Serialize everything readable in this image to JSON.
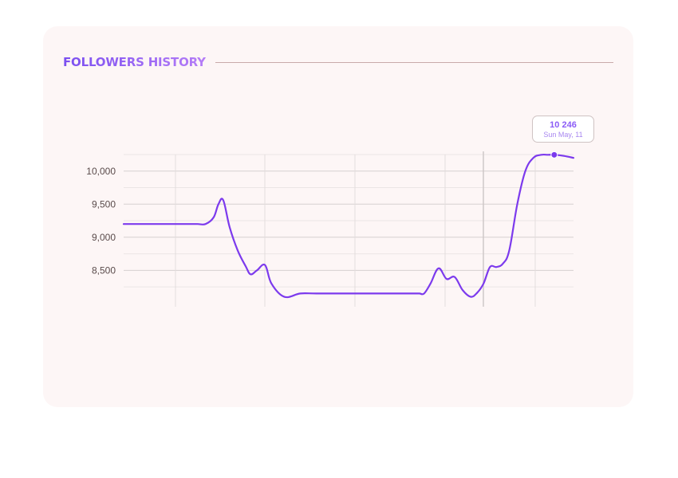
{
  "card": {
    "title": "FOLLOWERS HISTORY"
  },
  "colors": {
    "accent": "#7c3aed",
    "title_gradient_start": "#7b4ff0",
    "title_gradient_end": "#b57df7",
    "card_background": "#fdf6f6"
  },
  "tooltip": {
    "value": "10 246",
    "date": "Sun May, 11"
  },
  "chart_data": {
    "type": "line",
    "title": "",
    "xlabel": "",
    "ylabel": "",
    "ylim": [
      7950,
      10250
    ],
    "yticks": [
      8500,
      9000,
      9500,
      10000
    ],
    "ytick_labels": [
      "8,500",
      "9,000",
      "9,500",
      "10,000"
    ],
    "grid": true,
    "legend": "none",
    "series": [
      {
        "x": [
          0,
          1,
          2,
          2.3,
          2.55,
          2.8,
          2.95,
          3.1,
          3.3,
          3.55,
          3.8,
          3.95,
          4.15,
          4.4,
          4.6,
          5,
          5.5,
          6,
          7,
          7.5,
          8,
          8.5,
          9,
          9.2,
          9.35,
          9.55,
          9.8,
          10.05,
          10.3,
          10.55,
          10.8,
          11,
          11.2,
          11.4,
          11.6,
          11.8,
          12,
          12.25,
          12.5,
          12.75,
          13,
          13.2,
          13.4,
          13.7,
          14
        ],
        "y": [
          9200,
          9200,
          9200,
          9200,
          9200,
          9300,
          9500,
          9560,
          9150,
          8800,
          8560,
          8440,
          8500,
          8580,
          8300,
          8100,
          8150,
          8150,
          8150,
          8150,
          8150,
          8150,
          8150,
          8150,
          8150,
          8300,
          8530,
          8370,
          8400,
          8200,
          8100,
          8160,
          8300,
          8550,
          8550,
          8600,
          8800,
          9500,
          10000,
          10200,
          10246,
          10246,
          10246,
          10230,
          10200
        ],
        "highlight_index": 42
      }
    ]
  }
}
